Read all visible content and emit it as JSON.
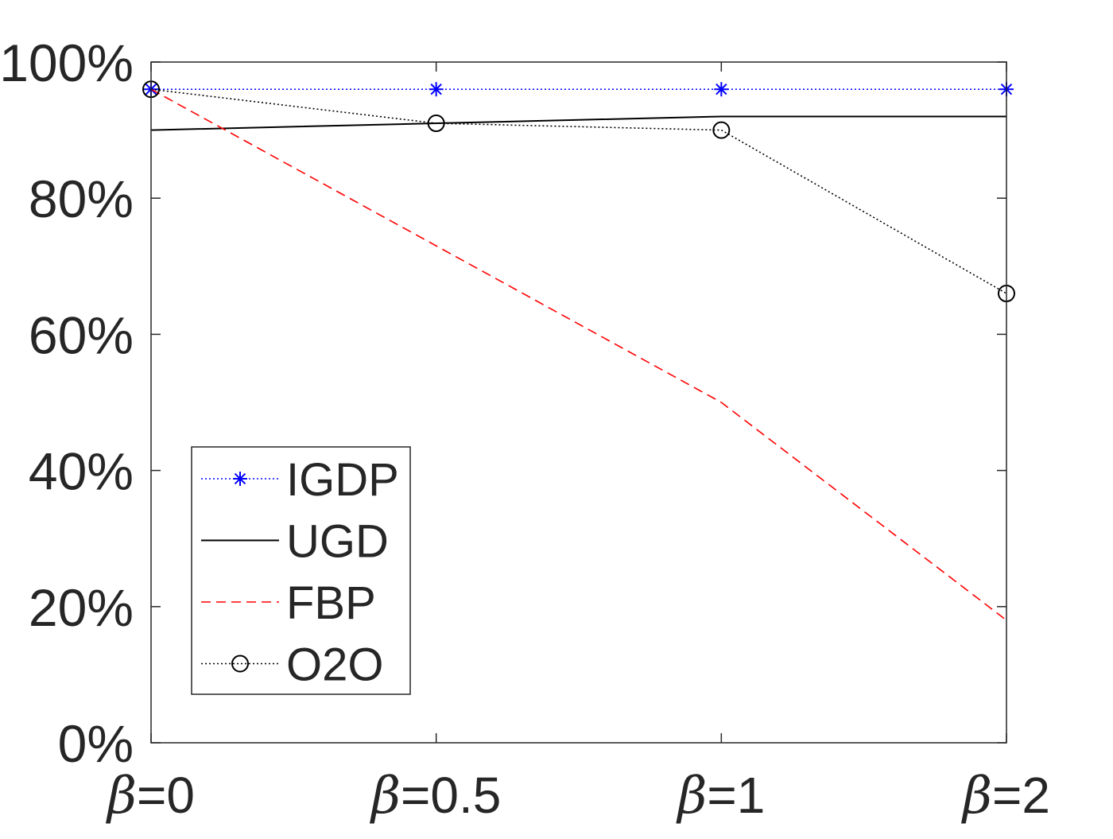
{
  "chart_data": {
    "type": "line",
    "title": "",
    "xlabel": "",
    "ylabel": "",
    "categories": [
      {
        "symbol": "β",
        "text": "=0"
      },
      {
        "symbol": "β",
        "text": "=0.5"
      },
      {
        "symbol": "β",
        "text": "=1"
      },
      {
        "symbol": "β",
        "text": "=2"
      }
    ],
    "y_ticks": [
      "0%",
      "20%",
      "40%",
      "60%",
      "80%",
      "100%"
    ],
    "ylim": [
      0,
      100
    ],
    "grid": false,
    "legend_position": "bottom-left",
    "series": [
      {
        "name": "IGDP",
        "values": [
          96,
          96,
          96,
          96
        ],
        "color": "#0000ff",
        "line_style": "dotted",
        "marker": "asterisk"
      },
      {
        "name": "UGD",
        "values": [
          90,
          91,
          92,
          92
        ],
        "color": "#000000",
        "line_style": "solid",
        "marker": "none"
      },
      {
        "name": "FBP",
        "values": [
          96,
          73,
          50,
          18
        ],
        "color": "#ff0000",
        "line_style": "dashed",
        "marker": "none"
      },
      {
        "name": "O2O",
        "values": [
          96,
          91,
          90,
          66
        ],
        "color": "#000000",
        "line_style": "dotted",
        "marker": "circle"
      }
    ]
  }
}
